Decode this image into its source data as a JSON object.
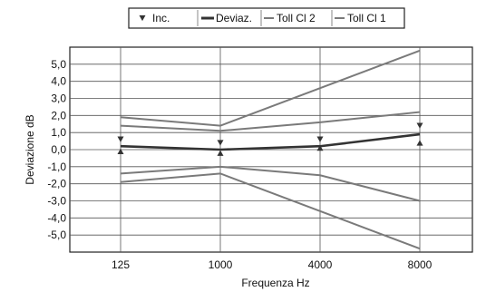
{
  "chart_data": {
    "type": "line",
    "xlabel": "Frequenza Hz",
    "ylabel": "Deviazione dB",
    "categories": [
      "125",
      "1000",
      "4000",
      "8000"
    ],
    "ylim": [
      -6,
      6
    ],
    "yticks": [
      "5,0",
      "4,0",
      "3,0",
      "2,0",
      "1,0",
      "0,0",
      "-1,0",
      "-2,0",
      "-3,0",
      "-4,0",
      "-5,0"
    ],
    "ytick_values": [
      5,
      4,
      3,
      2,
      1,
      0,
      -1,
      -2,
      -3,
      -4,
      -5
    ],
    "grid": true,
    "legend_position": "top",
    "series": [
      {
        "name": "Inc.",
        "kind": "markers",
        "upper": [
          0.6,
          0.4,
          0.6,
          1.4
        ],
        "lower": [
          -0.1,
          -0.2,
          0.1,
          0.4
        ],
        "color": "#333333"
      },
      {
        "name": "Deviaz.",
        "kind": "line",
        "values": [
          0.2,
          0.0,
          0.2,
          0.9
        ],
        "color": "#333333"
      },
      {
        "name": "Toll Cl 2",
        "kind": "band",
        "upper": [
          1.9,
          1.4,
          3.6,
          5.8
        ],
        "lower": [
          -1.9,
          -1.4,
          -3.6,
          -5.8
        ],
        "color": "#7a7a7a"
      },
      {
        "name": "Toll Cl 1",
        "kind": "band",
        "upper": [
          1.4,
          1.1,
          1.6,
          2.2
        ],
        "lower": [
          -1.4,
          -1.0,
          -1.5,
          -3.0
        ],
        "color": "#7a7a7a"
      }
    ]
  }
}
